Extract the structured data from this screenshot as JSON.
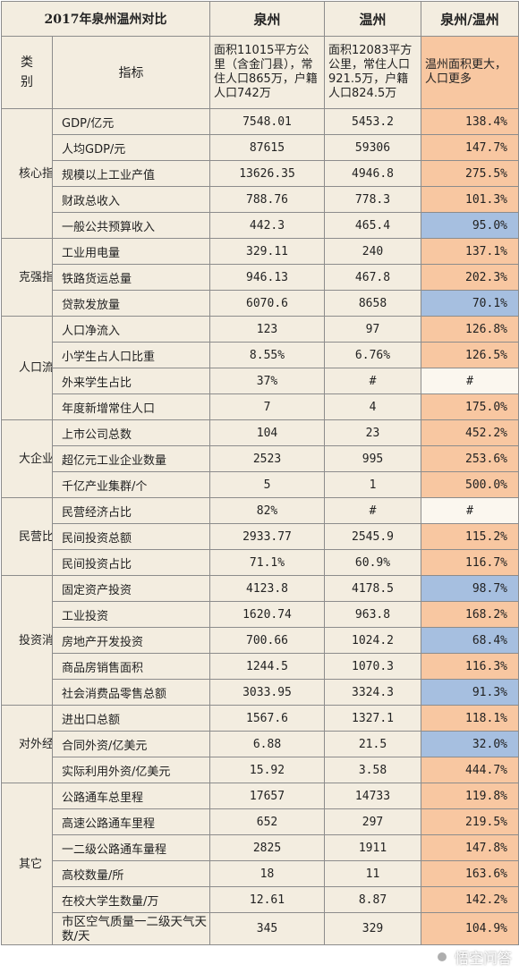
{
  "header": {
    "title": "2017年泉州温州对比",
    "col_quanzhou": "泉州",
    "col_wenzhou": "温州",
    "col_ratio": "泉州/温州"
  },
  "subheader": {
    "category": "类别",
    "indicator": "指标",
    "quanzhou_desc": "面积11015平方公里（含金门县），常住人口865万，户籍人口742万",
    "wenzhou_desc": "面积12083平方公里，常住人口921.5万，户籍人口824.5万",
    "ratio_note": "温州面积更大，人口更多"
  },
  "colors": {
    "cream": "#f3ede0",
    "orange": "#f8c7a1",
    "blue": "#a6bfe0",
    "border": "#8c8c8c"
  },
  "groups": [
    {
      "category": "核心指标",
      "rows": [
        {
          "indicator": "GDP/亿元",
          "quanzhou": "7548.01",
          "wenzhou": "5453.2",
          "ratio": "138.4%",
          "tone": "orange"
        },
        {
          "indicator": "人均GDP/元",
          "quanzhou": "87615",
          "wenzhou": "59306",
          "ratio": "147.7%",
          "tone": "orange"
        },
        {
          "indicator": "规模以上工业产值",
          "quanzhou": "13626.35",
          "wenzhou": "4946.8",
          "ratio": "275.5%",
          "tone": "orange"
        },
        {
          "indicator": "财政总收入",
          "quanzhou": "788.76",
          "wenzhou": "778.3",
          "ratio": "101.3%",
          "tone": "orange"
        },
        {
          "indicator": "一般公共预算收入",
          "quanzhou": "442.3",
          "wenzhou": "465.4",
          "ratio": "95.0%",
          "tone": "blue"
        }
      ]
    },
    {
      "category": "克强指数",
      "rows": [
        {
          "indicator": "工业用电量",
          "quanzhou": "329.11",
          "wenzhou": "240",
          "ratio": "137.1%",
          "tone": "orange"
        },
        {
          "indicator": "铁路货运总量",
          "quanzhou": "946.13",
          "wenzhou": "467.8",
          "ratio": "202.3%",
          "tone": "orange"
        },
        {
          "indicator": "贷款发放量",
          "quanzhou": "6070.6",
          "wenzhou": "8658",
          "ratio": "70.1%",
          "tone": "blue"
        }
      ]
    },
    {
      "category": "人口流入",
      "rows": [
        {
          "indicator": "人口净流入",
          "quanzhou": "123",
          "wenzhou": "97",
          "ratio": "126.8%",
          "tone": "orange"
        },
        {
          "indicator": "小学生占人口比重",
          "quanzhou": "8.55%",
          "wenzhou": "6.76%",
          "ratio": "126.5%",
          "tone": "orange"
        },
        {
          "indicator": "外来学生占比",
          "quanzhou": "37%",
          "wenzhou": "#",
          "ratio": "#",
          "tone": "white"
        },
        {
          "indicator": "年度新增常住人口",
          "quanzhou": "7",
          "wenzhou": "4",
          "ratio": "175.0%",
          "tone": "orange"
        }
      ]
    },
    {
      "category": "大企业",
      "rows": [
        {
          "indicator": "上市公司总数",
          "quanzhou": "104",
          "wenzhou": "23",
          "ratio": "452.2%",
          "tone": "orange"
        },
        {
          "indicator": "超亿元工业企业数量",
          "quanzhou": "2523",
          "wenzhou": "995",
          "ratio": "253.6%",
          "tone": "orange"
        },
        {
          "indicator": "千亿产业集群/个",
          "quanzhou": "5",
          "wenzhou": "1",
          "ratio": "500.0%",
          "tone": "orange"
        }
      ]
    },
    {
      "category": "民营比重",
      "rows": [
        {
          "indicator": "民营经济占比",
          "quanzhou": "82%",
          "wenzhou": "#",
          "ratio": "#",
          "tone": "white"
        },
        {
          "indicator": "民间投资总额",
          "quanzhou": "2933.77",
          "wenzhou": "2545.9",
          "ratio": "115.2%",
          "tone": "orange"
        },
        {
          "indicator": "民间投资占比",
          "quanzhou": "71.1%",
          "wenzhou": "60.9%",
          "ratio": "116.7%",
          "tone": "orange"
        }
      ]
    },
    {
      "category": "投资消费",
      "rows": [
        {
          "indicator": "固定资产投资",
          "quanzhou": "4123.8",
          "wenzhou": "4178.5",
          "ratio": "98.7%",
          "tone": "blue"
        },
        {
          "indicator": "工业投资",
          "quanzhou": "1620.74",
          "wenzhou": "963.8",
          "ratio": "168.2%",
          "tone": "orange"
        },
        {
          "indicator": "房地产开发投资",
          "quanzhou": "700.66",
          "wenzhou": "1024.2",
          "ratio": "68.4%",
          "tone": "blue"
        },
        {
          "indicator": "商品房销售面积",
          "quanzhou": "1244.5",
          "wenzhou": "1070.3",
          "ratio": "116.3%",
          "tone": "orange"
        },
        {
          "indicator": "社会消费品零售总额",
          "quanzhou": "3033.95",
          "wenzhou": "3324.3",
          "ratio": "91.3%",
          "tone": "blue"
        }
      ]
    },
    {
      "category": "对外经济",
      "rows": [
        {
          "indicator": "进出口总额",
          "quanzhou": "1567.6",
          "wenzhou": "1327.1",
          "ratio": "118.1%",
          "tone": "orange"
        },
        {
          "indicator": "合同外资/亿美元",
          "quanzhou": "6.88",
          "wenzhou": "21.5",
          "ratio": "32.0%",
          "tone": "blue"
        },
        {
          "indicator": "实际利用外资/亿美元",
          "quanzhou": "15.92",
          "wenzhou": "3.58",
          "ratio": "444.7%",
          "tone": "orange"
        }
      ]
    },
    {
      "category": "其它",
      "rows": [
        {
          "indicator": "公路通车总里程",
          "quanzhou": "17657",
          "wenzhou": "14733",
          "ratio": "119.8%",
          "tone": "orange"
        },
        {
          "indicator": "高速公路通车里程",
          "quanzhou": "652",
          "wenzhou": "297",
          "ratio": "219.5%",
          "tone": "orange"
        },
        {
          "indicator": "一二级公路通车量程",
          "quanzhou": "2825",
          "wenzhou": "1911",
          "ratio": "147.8%",
          "tone": "orange"
        },
        {
          "indicator": "高校数量/所",
          "quanzhou": "18",
          "wenzhou": "11",
          "ratio": "163.6%",
          "tone": "orange"
        },
        {
          "indicator": "在校大学生数量/万",
          "quanzhou": "12.61",
          "wenzhou": "8.87",
          "ratio": "142.2%",
          "tone": "orange"
        },
        {
          "indicator": "市区空气质量一二级天气天数/天",
          "quanzhou": "345",
          "wenzhou": "329",
          "ratio": "104.9%",
          "tone": "orange",
          "wrap": true
        }
      ]
    }
  ],
  "watermark": {
    "text": "悟空问答",
    "icon": "wukong-logo-icon"
  }
}
